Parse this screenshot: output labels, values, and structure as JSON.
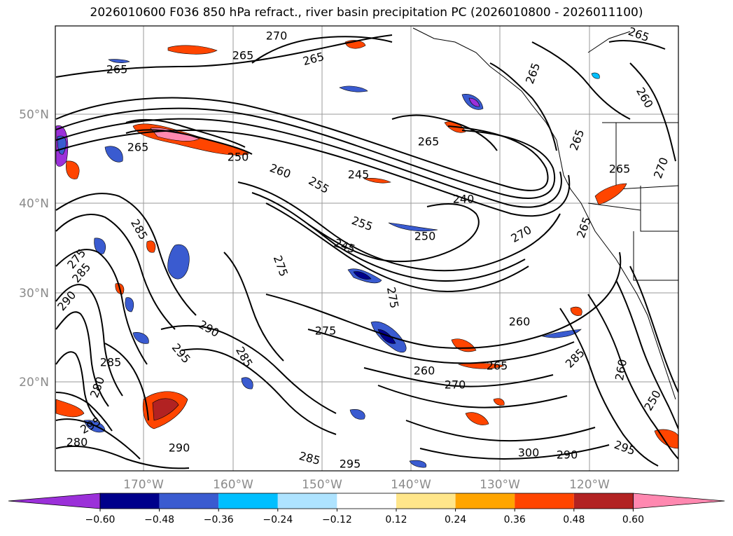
{
  "title": "2026010600 F036 850 hPa refract., river basin precipitation PC (2026010800 - 2026011100)",
  "map": {
    "lat_labels": [
      "50°N",
      "40°N",
      "30°N",
      "20°N"
    ],
    "lon_labels": [
      "170°W",
      "160°W",
      "150°W",
      "140°W",
      "130°W",
      "120°W"
    ],
    "contour_labels": [
      {
        "text": "265"
      },
      {
        "text": "265"
      },
      {
        "text": "265"
      },
      {
        "text": "265"
      },
      {
        "text": "265"
      },
      {
        "text": "260"
      },
      {
        "text": "265"
      },
      {
        "text": "270"
      },
      {
        "text": "250"
      },
      {
        "text": "260"
      },
      {
        "text": "255"
      },
      {
        "text": "245"
      },
      {
        "text": "240"
      },
      {
        "text": "255"
      },
      {
        "text": "250"
      },
      {
        "text": "245"
      },
      {
        "text": "270"
      },
      {
        "text": "265"
      },
      {
        "text": "275"
      },
      {
        "text": "275"
      },
      {
        "text": "275"
      },
      {
        "text": "260"
      },
      {
        "text": "260"
      },
      {
        "text": "265"
      },
      {
        "text": "270"
      },
      {
        "text": "285"
      },
      {
        "text": "260"
      },
      {
        "text": "250"
      },
      {
        "text": "290"
      },
      {
        "text": "295"
      },
      {
        "text": "285"
      },
      {
        "text": "290"
      },
      {
        "text": "300"
      },
      {
        "text": "290"
      },
      {
        "text": "295"
      },
      {
        "text": "285"
      },
      {
        "text": "295"
      },
      {
        "text": "275"
      },
      {
        "text": "285"
      },
      {
        "text": "290"
      },
      {
        "text": "285"
      },
      {
        "text": "280"
      },
      {
        "text": "295"
      },
      {
        "text": "280"
      },
      {
        "text": "285"
      },
      {
        "text": "265"
      },
      {
        "text": "265"
      },
      {
        "text": "265"
      },
      {
        "text": "270"
      }
    ]
  },
  "colorbar": {
    "colors": [
      "#9b30d9",
      "#00008b",
      "#3a5bd0",
      "#00bfff",
      "#aee3ff",
      "#ffffff",
      "#ffe68a",
      "#ffa500",
      "#ff4500",
      "#b22222",
      "#ff88b0"
    ],
    "tick_labels": [
      "−0.60",
      "−0.48",
      "−0.36",
      "−0.24",
      "−0.12",
      "0.12",
      "0.24",
      "0.36",
      "0.48",
      "0.60"
    ]
  }
}
